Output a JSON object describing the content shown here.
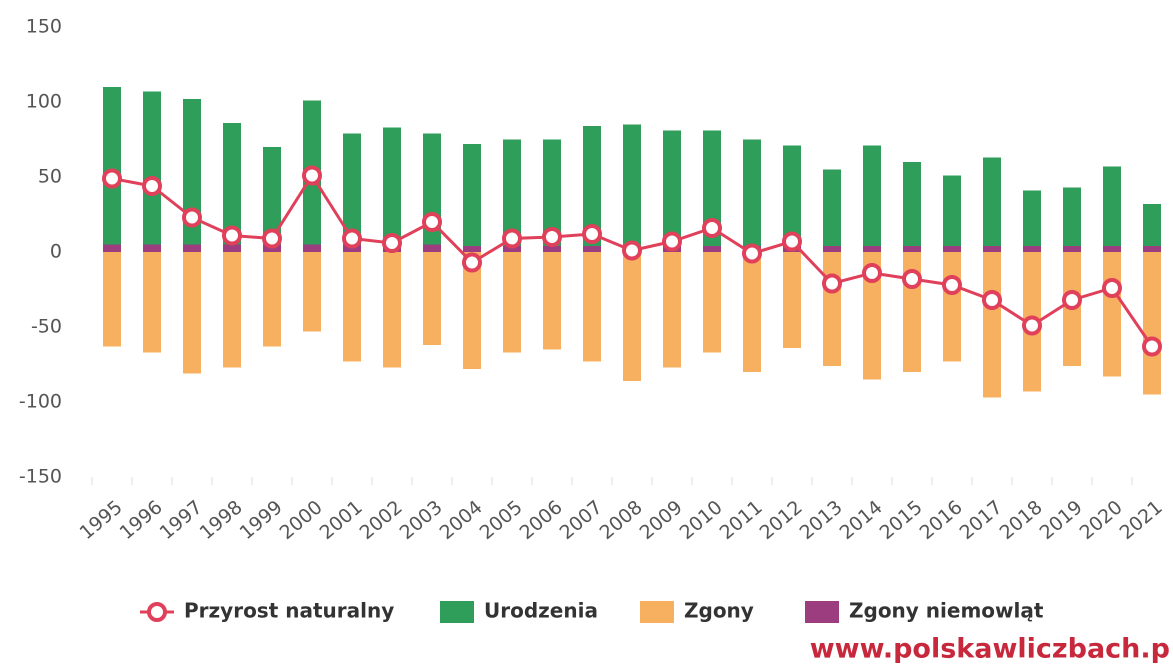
{
  "chart_data": {
    "type": "bar-line",
    "categories": [
      "1995",
      "1996",
      "1997",
      "1998",
      "1999",
      "2000",
      "2001",
      "2002",
      "2003",
      "2004",
      "2005",
      "2006",
      "2007",
      "2008",
      "2009",
      "2010",
      "2011",
      "2012",
      "2013",
      "2014",
      "2015",
      "2016",
      "2017",
      "2018",
      "2019",
      "2020",
      "2021"
    ],
    "series": [
      {
        "name": "Przyrost naturalny",
        "kind": "line",
        "color": "#e0405a",
        "values": [
          49,
          44,
          23,
          11,
          9,
          51,
          9,
          6,
          20,
          -7,
          9,
          10,
          12,
          1,
          7,
          16,
          -1,
          7,
          -21,
          -14,
          -18,
          -22,
          -32,
          -49,
          -32,
          -24,
          -63
        ]
      },
      {
        "name": "Urodzenia",
        "kind": "bar",
        "color": "#2e9e5a",
        "values": [
          110,
          107,
          102,
          86,
          70,
          101,
          79,
          83,
          79,
          72,
          75,
          75,
          84,
          85,
          81,
          81,
          75,
          71,
          55,
          71,
          60,
          51,
          63,
          41,
          43,
          57,
          32
        ]
      },
      {
        "name": "Zgony",
        "kind": "bar",
        "color": "#f7b060",
        "values": [
          -63,
          -67,
          -81,
          -77,
          -63,
          -53,
          -73,
          -77,
          -62,
          -78,
          -67,
          -65,
          -73,
          -86,
          -77,
          -67,
          -80,
          -64,
          -76,
          -85,
          -80,
          -73,
          -97,
          -93,
          -76,
          -83,
          -95
        ]
      },
      {
        "name": "Zgony niemowląt",
        "kind": "bar",
        "color": "#9b3d7f",
        "values": [
          5,
          5,
          5,
          5,
          5,
          5,
          5,
          5,
          5,
          4,
          4,
          4,
          4,
          4,
          4,
          4,
          4,
          4,
          4,
          4,
          4,
          4,
          4,
          4,
          4,
          4,
          4
        ]
      }
    ],
    "ylim": [
      -150,
      150
    ],
    "yticks": [
      -150,
      -100,
      -50,
      0,
      50,
      100,
      150
    ],
    "grid": false,
    "watermark": "www.polskawliczbach.p"
  }
}
